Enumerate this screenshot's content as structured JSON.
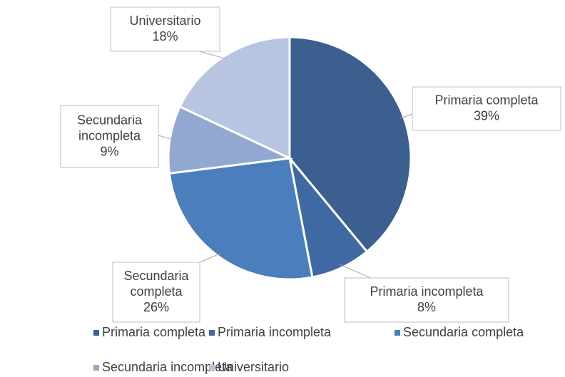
{
  "chart_data": {
    "type": "pie",
    "categories": [
      "Primaria completa",
      "Primaria incompleta",
      "Secundaria completa",
      "Secundaria incompleta",
      "Universitario"
    ],
    "values": [
      39,
      8,
      26,
      9,
      18
    ],
    "value_labels": [
      "39%",
      "8%",
      "26%",
      "9%",
      "18%"
    ],
    "colors": [
      "#3b5f8e",
      "#3f69a3",
      "#4a7ebd",
      "#93a8d1",
      "#b8c5e0"
    ],
    "legend": "bottom"
  }
}
